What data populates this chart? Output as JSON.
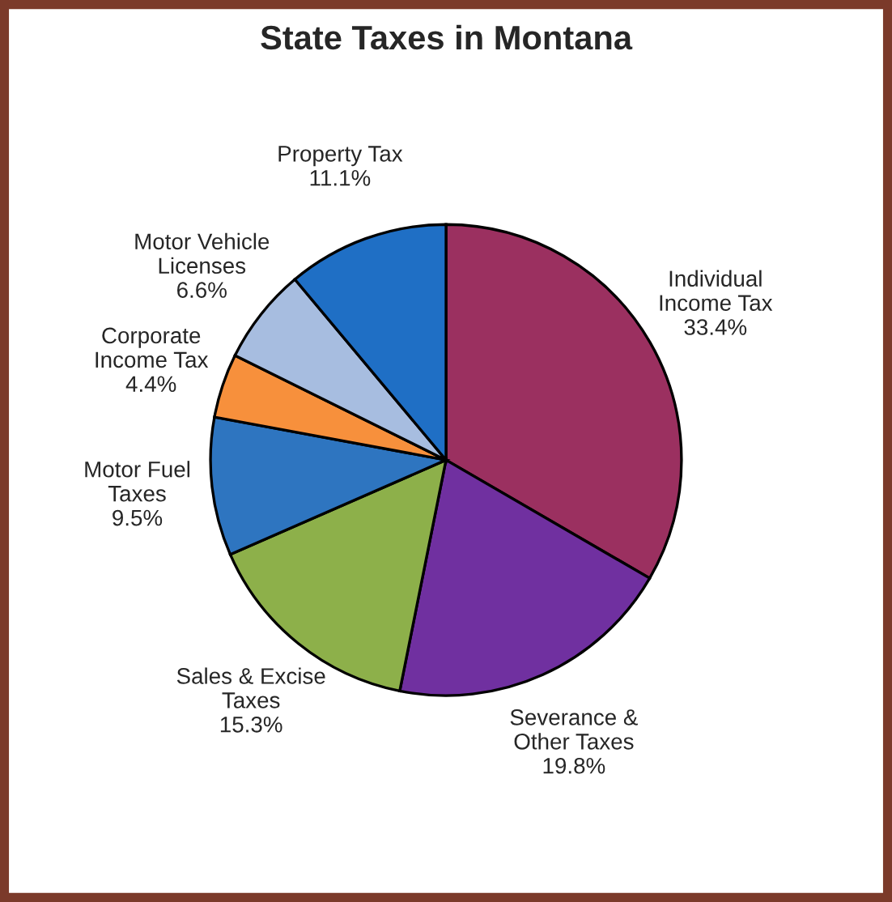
{
  "chart_data": {
    "type": "pie",
    "title": "State Taxes in Montana",
    "categories": [
      "Individual\nIncome Tax",
      "Severance &\nOther Taxes",
      "Sales & Excise\nTaxes",
      "Motor Fuel\nTaxes",
      "Corporate\nIncome Tax",
      "Motor Vehicle\nLicenses",
      "Property Tax"
    ],
    "values": [
      33.4,
      19.8,
      15.3,
      9.5,
      4.4,
      6.6,
      11.1
    ],
    "colors": [
      "#9b3060",
      "#7030a0",
      "#8db04a",
      "#2e75c0",
      "#f7903c",
      "#a7bde0",
      "#1f6fc5"
    ],
    "value_labels": [
      "33.4%",
      "19.8%",
      "15.3%",
      "9.5%",
      "4.4%",
      "6.6%",
      "11.1%"
    ]
  }
}
